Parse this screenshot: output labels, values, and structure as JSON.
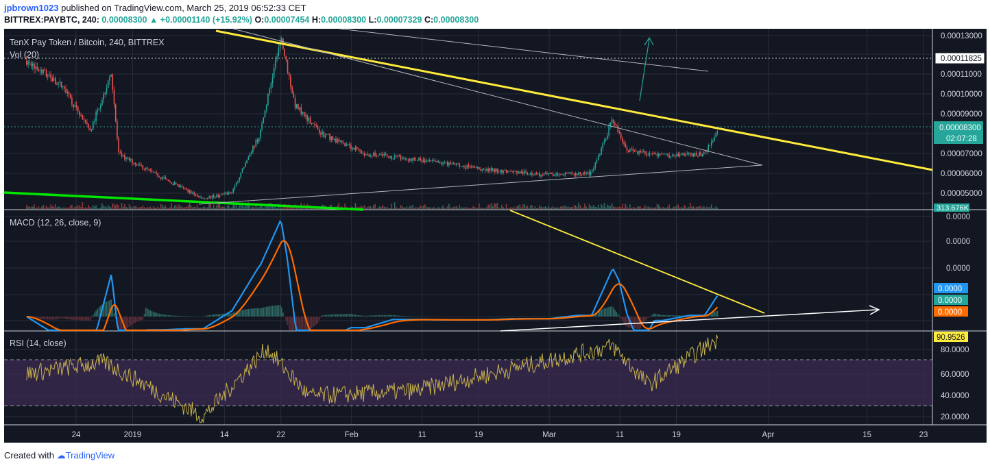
{
  "header": {
    "user": "jpbrown1023",
    "published": "published on TradingView.com, March 25, 2019 06:52:33 CET",
    "symbol": "BITTREX:PAYBTC, 240",
    "last": "0.00008300",
    "change": "+0.00001140 (+15.92%)",
    "open_label": "O:",
    "open": "0.00007454",
    "high_label": "H:",
    "high": "0.00008300",
    "low_label": "L:",
    "low": "0.00007329",
    "close_label": "C:",
    "close": "0.00008300"
  },
  "footer": {
    "created_with": "Created with",
    "brand": "TradingView"
  },
  "colors": {
    "background": "#131722",
    "grid": "#2a2e39",
    "up": "#26a69a",
    "down": "#ef5350",
    "yellow_line": "#ffeb3b",
    "green_line": "#00e600",
    "macd": "#2196f3",
    "signal": "#ff6d00",
    "rsi": "#c9b44c",
    "rsi_band": "#3b2b52",
    "arrow_teal": "#26a69a"
  },
  "chart_data": [
    {
      "type": "candlestick",
      "pane": "price",
      "title": "TenX Pay Token / Bitcoin, 240, BITTREX",
      "volume_label": "Vol (20)",
      "volume_badge": "313.676K",
      "x_ticks": [
        "24",
        "2019",
        "14",
        "22",
        "Feb",
        "11",
        "19",
        "Mar",
        "11",
        "19",
        "Apr",
        "15",
        "23"
      ],
      "y_ticks": [
        "0.00013000",
        "0.00011000",
        "0.00010000",
        "0.00009000",
        "0.00007000",
        "0.00006000",
        "0.00005000"
      ],
      "ylim": [
        4.2e-05,
        0.000133
      ],
      "price_labels": {
        "resistance": "0.00011825",
        "last": "0.00008300",
        "countdown": "02:07:28"
      },
      "approx_close_path": [
        {
          "date": "2018-12-17",
          "close": 0.000118
        },
        {
          "date": "2018-12-22",
          "close": 0.000105
        },
        {
          "date": "2018-12-26",
          "close": 8.2e-05
        },
        {
          "date": "2018-12-29",
          "close": 0.000112
        },
        {
          "date": "2018-12-30",
          "close": 7e-05
        },
        {
          "date": "2019-01-05",
          "close": 5.8e-05
        },
        {
          "date": "2019-01-11",
          "close": 4.7e-05
        },
        {
          "date": "2019-01-15",
          "close": 5e-05
        },
        {
          "date": "2019-01-19",
          "close": 8e-05
        },
        {
          "date": "2019-01-22",
          "close": 0.00013
        },
        {
          "date": "2019-01-24",
          "close": 9.5e-05
        },
        {
          "date": "2019-01-28",
          "close": 8e-05
        },
        {
          "date": "2019-02-03",
          "close": 7e-05
        },
        {
          "date": "2019-02-10",
          "close": 6.7e-05
        },
        {
          "date": "2019-02-20",
          "close": 6.2e-05
        },
        {
          "date": "2019-03-01",
          "close": 5.9e-05
        },
        {
          "date": "2019-03-07",
          "close": 6e-05
        },
        {
          "date": "2019-03-10",
          "close": 8.8e-05
        },
        {
          "date": "2019-03-12",
          "close": 7.2e-05
        },
        {
          "date": "2019-03-17",
          "close": 6.9e-05
        },
        {
          "date": "2019-03-23",
          "close": 7e-05
        },
        {
          "date": "2019-03-25",
          "close": 8.3e-05
        }
      ]
    },
    {
      "type": "line",
      "pane": "macd",
      "title": "MACD (12, 26, close, 9)",
      "y_ticks": [
        "0.0000",
        "0.0000",
        "0.0000"
      ],
      "value_labels": [
        "0.0000",
        "0.0000",
        "0.0000"
      ]
    },
    {
      "type": "line",
      "pane": "rsi",
      "title": "RSI (14, close)",
      "y_ticks": [
        "80.0000",
        "60.0000",
        "40.0000",
        "20.0000"
      ],
      "ylim": [
        15,
        95
      ],
      "bands": [
        30,
        70
      ],
      "last_value": "90.9526",
      "approx_path": [
        {
          "date": "2018-12-17",
          "value": 60
        },
        {
          "date": "2018-12-28",
          "value": 70
        },
        {
          "date": "2019-01-11",
          "value": 22
        },
        {
          "date": "2019-01-20",
          "value": 82
        },
        {
          "date": "2019-01-26",
          "value": 40
        },
        {
          "date": "2019-02-10",
          "value": 45
        },
        {
          "date": "2019-03-10",
          "value": 84
        },
        {
          "date": "2019-03-15",
          "value": 50
        },
        {
          "date": "2019-03-25",
          "value": 91
        }
      ]
    }
  ]
}
